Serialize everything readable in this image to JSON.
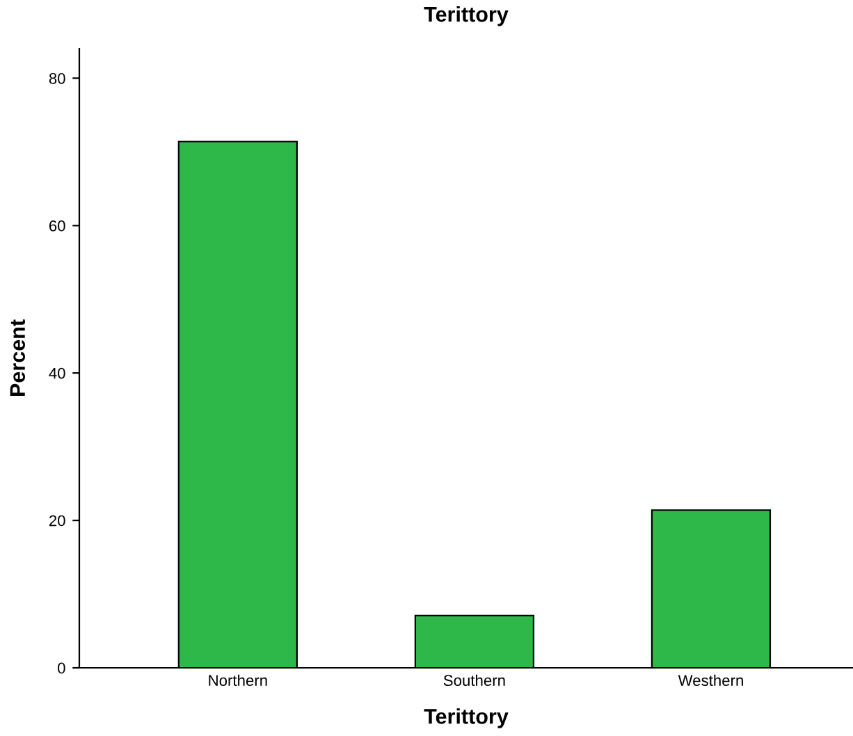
{
  "chart_data": {
    "type": "bar",
    "title": "Terittory",
    "xlabel": "Terittory",
    "ylabel": "Percent",
    "categories": [
      "Northern",
      "Southern",
      "Westhern"
    ],
    "values": [
      71.4,
      7.1,
      21.4
    ],
    "color": "#2fb84a",
    "ylim": [
      0,
      84
    ],
    "yticks": [
      0,
      20,
      40,
      60,
      80
    ],
    "grid": false
  }
}
